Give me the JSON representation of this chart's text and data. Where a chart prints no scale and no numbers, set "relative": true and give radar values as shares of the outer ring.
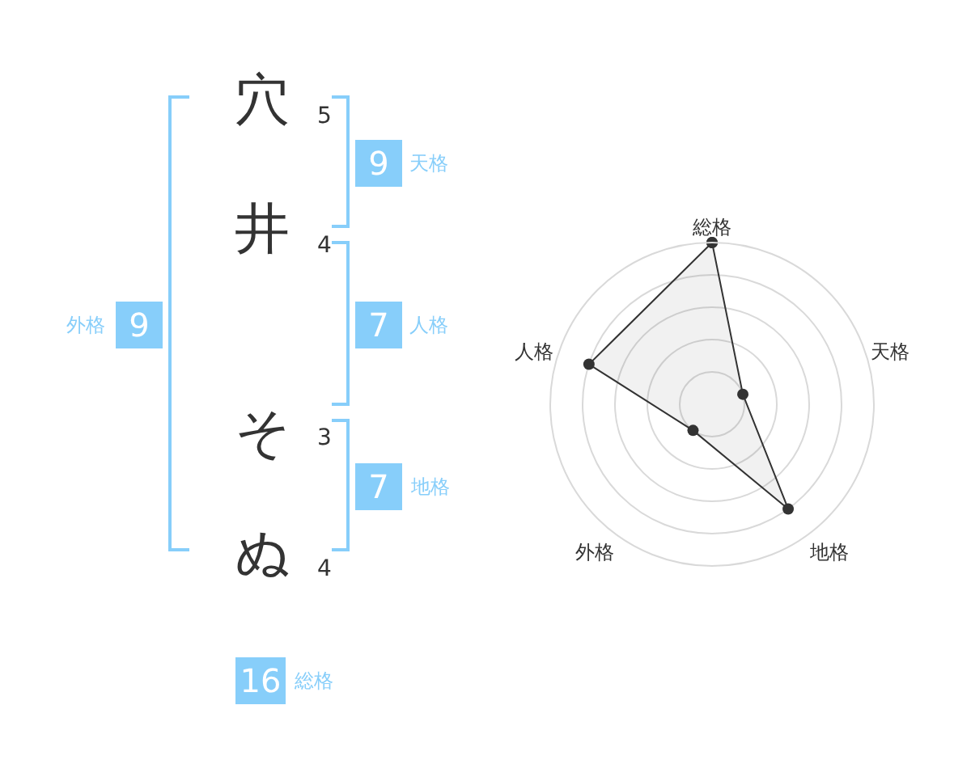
{
  "chart_data": [
    {
      "type": "other",
      "categories": [
        "穴",
        "井",
        "そ",
        "ぬ"
      ],
      "values": [
        5,
        4,
        3,
        4
      ],
      "data_labels": true,
      "color": "#333333"
    },
    {
      "type": "other",
      "categories": [
        "天格",
        "人格",
        "地格",
        "外格",
        "総格"
      ],
      "values": [
        9,
        7,
        7,
        9,
        16
      ],
      "data_labels": true,
      "color": "#87cefa"
    },
    {
      "type": "radar",
      "categories": [
        "総格",
        "天格",
        "地格",
        "外格",
        "人格"
      ],
      "relative": true,
      "grid": true,
      "marker": "circle",
      "series": [
        {
          "values": [
            1,
            0.2,
            0.8,
            0.2,
            0.8
          ],
          "color": "#333333"
        }
      ]
    }
  ]
}
